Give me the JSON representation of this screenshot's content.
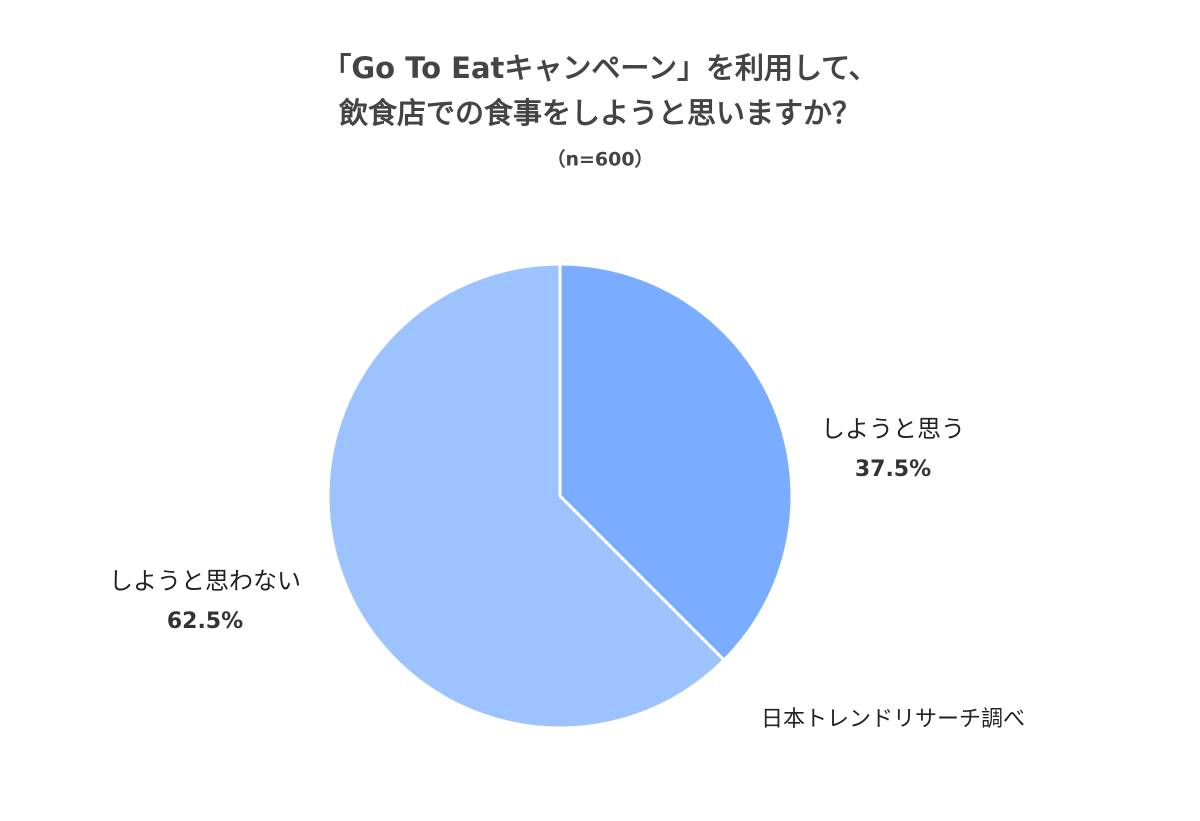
{
  "chart_data": {
    "type": "pie",
    "title": [
      "「Go To Eatキャンペーン」を利用して、",
      "飲食店での食事をしようと思いますか？"
    ],
    "subtitle": "（n=600）",
    "categories": [
      "しようと思う",
      "しようと思わない"
    ],
    "values": [
      37.5,
      62.5
    ],
    "value_labels": [
      "37.5%",
      "62.5%"
    ],
    "colors": [
      "#7aacff",
      "#9dc3ff"
    ],
    "source": "日本トレンドリサーチ調べ"
  }
}
